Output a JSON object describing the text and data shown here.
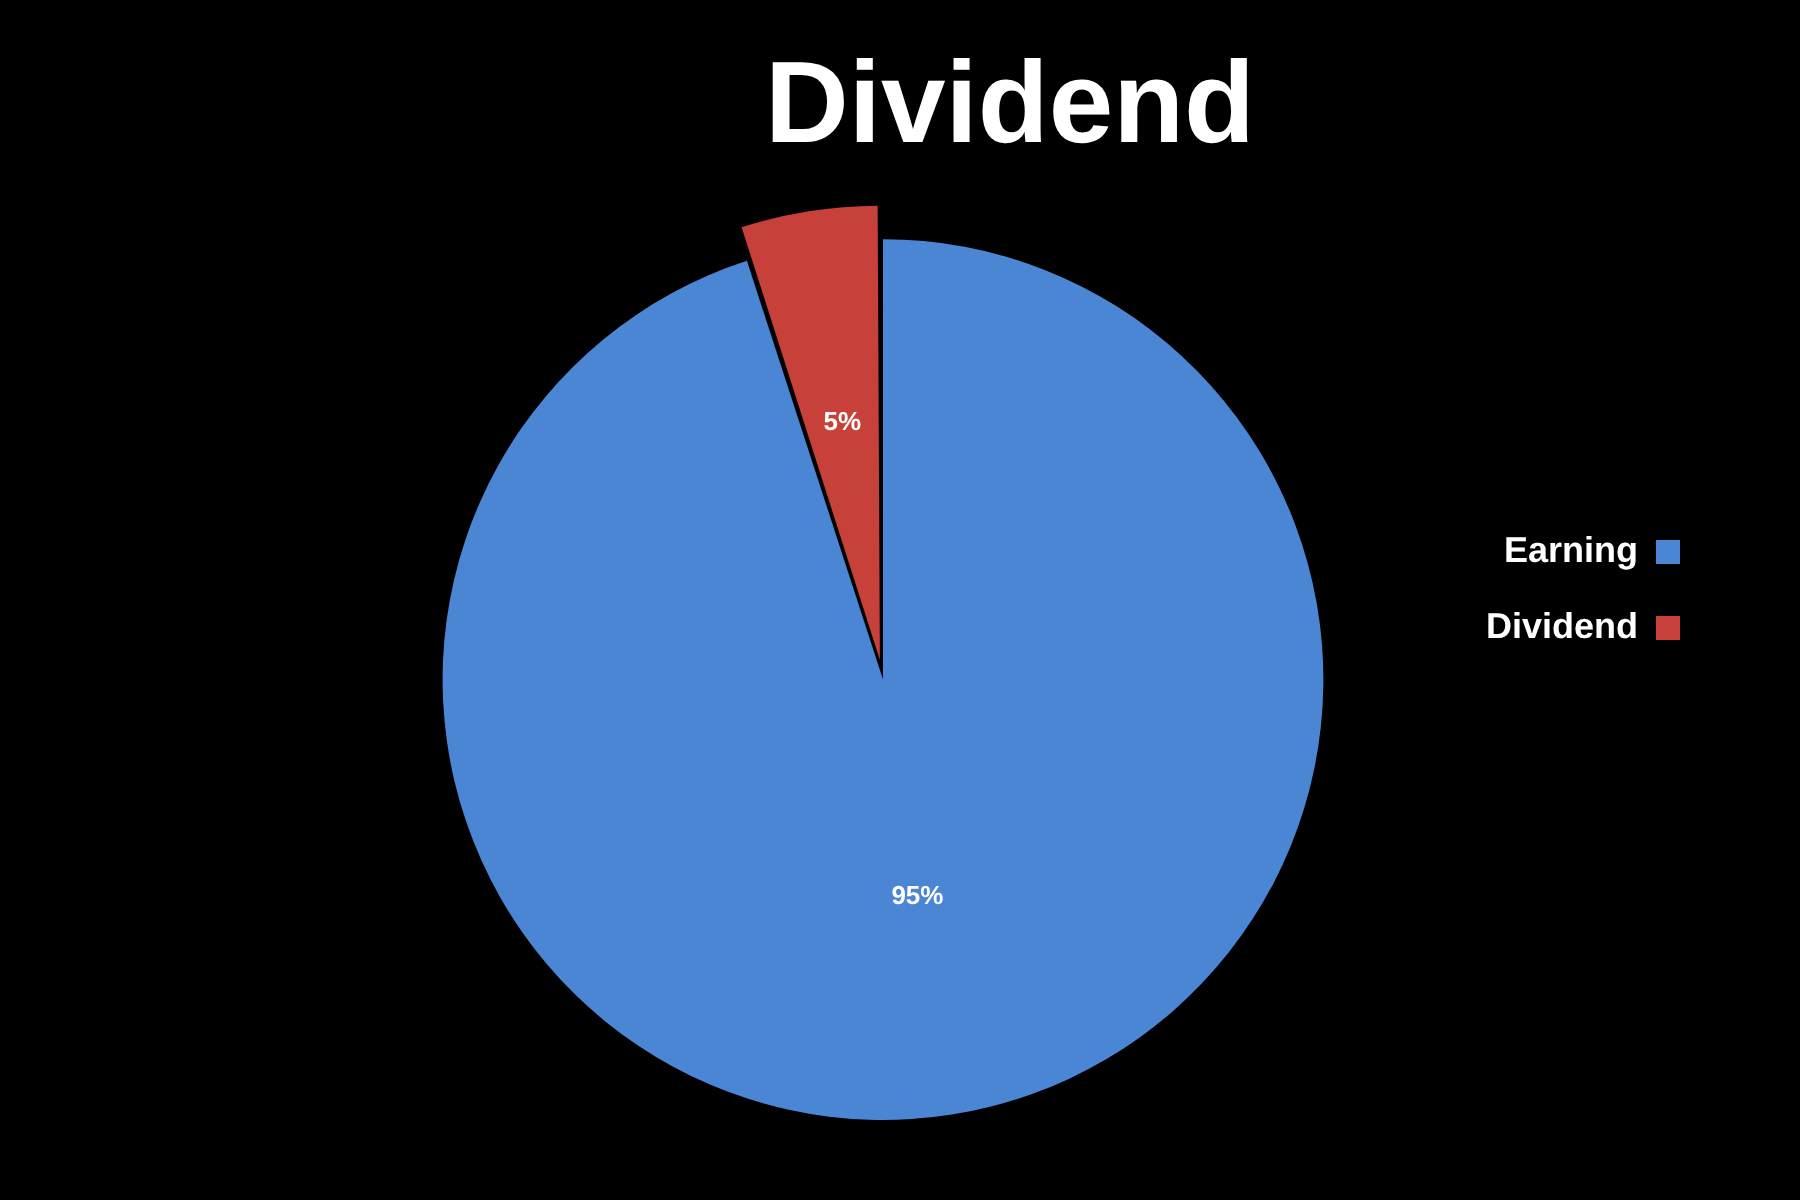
{
  "chart_data": {
    "type": "pie",
    "title": "Dividend",
    "categories": [
      "Earning",
      "Dividend"
    ],
    "values": [
      95,
      5
    ],
    "colors": [
      "#4a86d4",
      "#c8403a"
    ],
    "value_labels": [
      "95%",
      "5%"
    ],
    "legend": "right"
  }
}
